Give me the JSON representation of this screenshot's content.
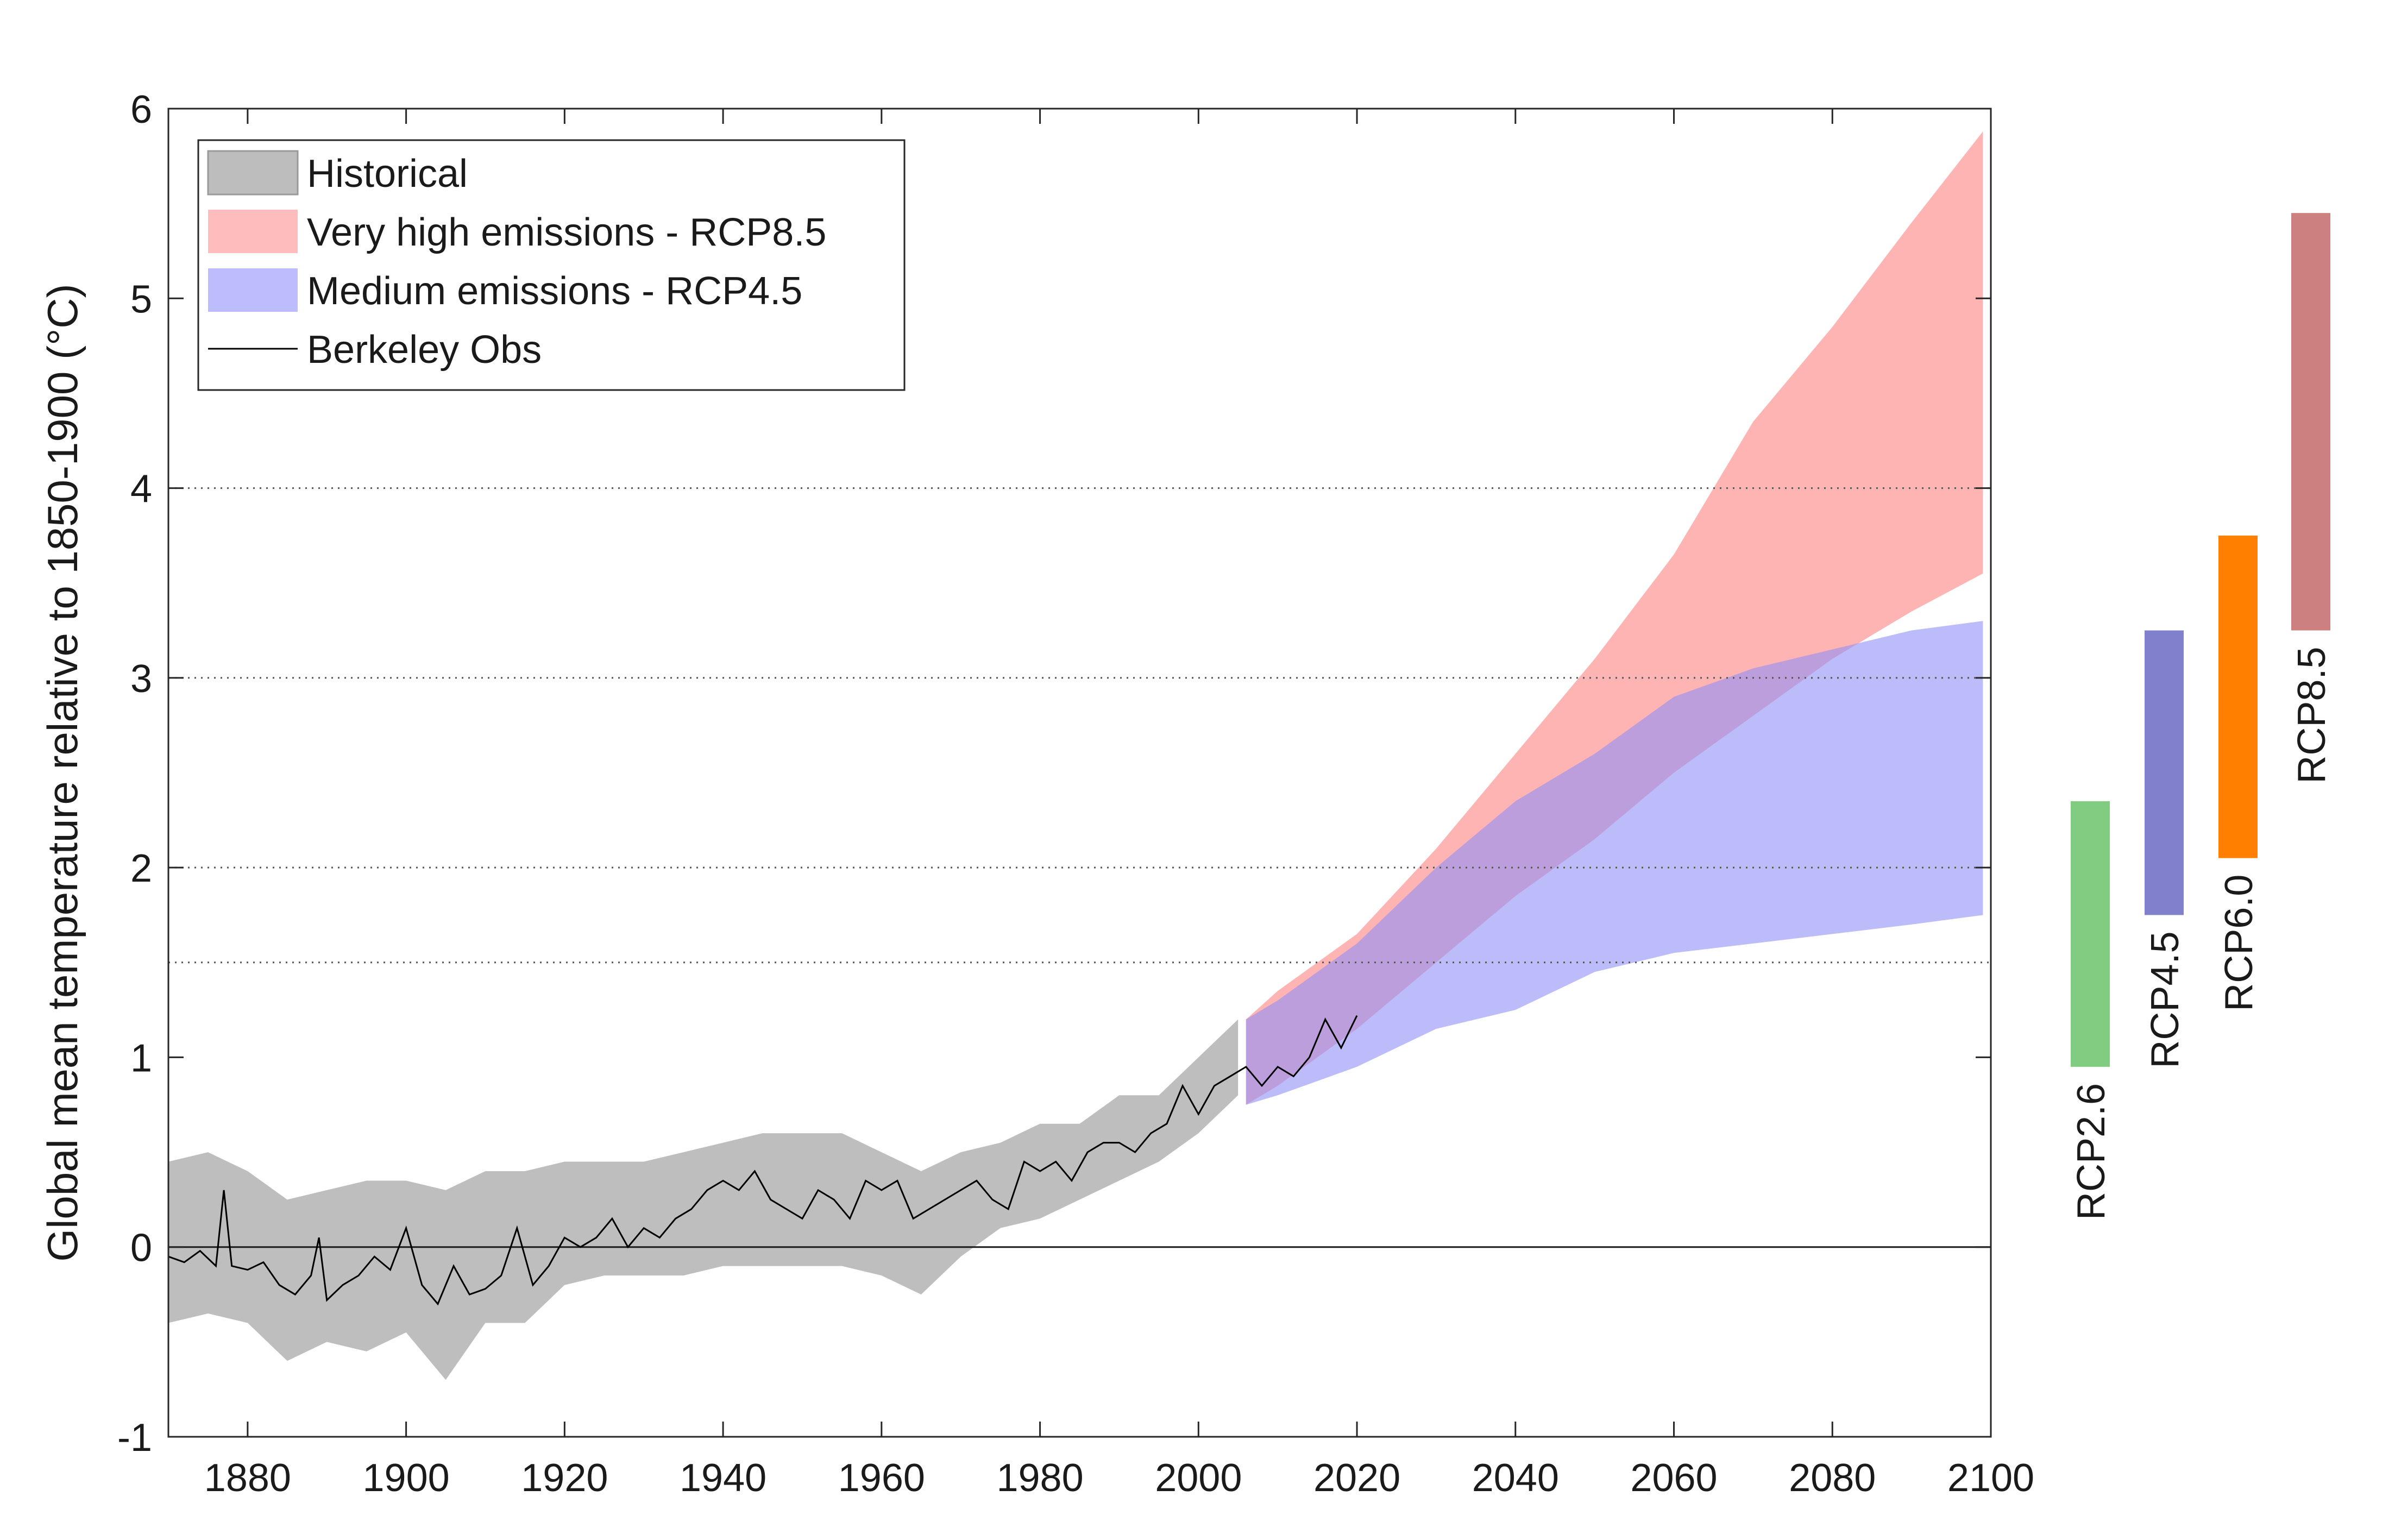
{
  "chart_data": {
    "type": "area",
    "title": "",
    "xlabel": "",
    "ylabel": "Global mean temperature relative to 1850-1900 (°C)",
    "xlim": [
      1870,
      2100
    ],
    "ylim": [
      -1,
      6
    ],
    "xticks": [
      1880,
      1900,
      1920,
      1940,
      1960,
      1980,
      2000,
      2020,
      2040,
      2060,
      2080,
      2100
    ],
    "yticks": [
      -1,
      0,
      1,
      2,
      3,
      4,
      5,
      6
    ],
    "reference_lines": [
      {
        "y": 0,
        "style": "solid"
      },
      {
        "y": 1.5,
        "style": "dotted"
      },
      {
        "y": 2,
        "style": "dotted"
      },
      {
        "y": 3,
        "style": "dotted"
      },
      {
        "y": 4,
        "style": "dotted"
      }
    ],
    "legend": {
      "placement": "top-left",
      "entries": [
        {
          "label": "Historical",
          "color": "#bdbdbd",
          "kind": "patch"
        },
        {
          "label": "Very high emissions - RCP8.5",
          "color": "#ffbcbc",
          "kind": "patch"
        },
        {
          "label": "Medium emissions - RCP4.5",
          "color": "#bdbcfc",
          "kind": "patch"
        },
        {
          "label": "Berkeley Obs",
          "color": "#000000",
          "kind": "line"
        }
      ]
    },
    "series": [
      {
        "name": "Historical",
        "kind": "band",
        "color": "#bebebe",
        "x": [
          1870,
          1875,
          1880,
          1885,
          1890,
          1895,
          1900,
          1905,
          1910,
          1915,
          1920,
          1925,
          1930,
          1935,
          1940,
          1945,
          1950,
          1955,
          1960,
          1965,
          1970,
          1975,
          1980,
          1985,
          1990,
          1995,
          2000,
          2005
        ],
        "upper": [
          0.45,
          0.5,
          0.4,
          0.25,
          0.3,
          0.35,
          0.35,
          0.3,
          0.4,
          0.4,
          0.45,
          0.45,
          0.45,
          0.5,
          0.55,
          0.6,
          0.6,
          0.6,
          0.5,
          0.4,
          0.5,
          0.55,
          0.65,
          0.65,
          0.8,
          0.8,
          1.0,
          1.2
        ],
        "lower": [
          -0.4,
          -0.35,
          -0.4,
          -0.6,
          -0.5,
          -0.55,
          -0.45,
          -0.7,
          -0.4,
          -0.4,
          -0.2,
          -0.15,
          -0.15,
          -0.15,
          -0.1,
          -0.1,
          -0.1,
          -0.1,
          -0.15,
          -0.25,
          -0.05,
          0.1,
          0.15,
          0.25,
          0.35,
          0.45,
          0.6,
          0.8
        ]
      },
      {
        "name": "Very high emissions - RCP8.5",
        "kind": "band",
        "color": "#ffb0b0",
        "x": [
          2006,
          2010,
          2020,
          2030,
          2040,
          2050,
          2060,
          2070,
          2080,
          2090,
          2099
        ],
        "upper": [
          1.2,
          1.35,
          1.65,
          2.1,
          2.6,
          3.1,
          3.65,
          4.35,
          4.85,
          5.4,
          5.88
        ],
        "lower": [
          0.75,
          0.85,
          1.15,
          1.5,
          1.85,
          2.15,
          2.5,
          2.8,
          3.1,
          3.35,
          3.55
        ]
      },
      {
        "name": "Medium emissions - RCP4.5",
        "kind": "band",
        "color": "#9090f8",
        "x": [
          2006,
          2010,
          2020,
          2030,
          2040,
          2050,
          2060,
          2070,
          2080,
          2090,
          2099
        ],
        "upper": [
          1.2,
          1.3,
          1.6,
          2.0,
          2.35,
          2.6,
          2.9,
          3.05,
          3.15,
          3.25,
          3.3
        ],
        "lower": [
          0.75,
          0.8,
          0.95,
          1.15,
          1.25,
          1.45,
          1.55,
          1.6,
          1.65,
          1.7,
          1.75
        ]
      },
      {
        "name": "Berkeley Obs",
        "kind": "line",
        "color": "#000000",
        "x": [
          1870,
          1872,
          1874,
          1876,
          1877,
          1878,
          1880,
          1882,
          1884,
          1886,
          1888,
          1889,
          1890,
          1892,
          1894,
          1896,
          1898,
          1900,
          1902,
          1904,
          1906,
          1908,
          1910,
          1912,
          1914,
          1916,
          1918,
          1920,
          1922,
          1924,
          1926,
          1928,
          1930,
          1932,
          1934,
          1936,
          1938,
          1940,
          1942,
          1944,
          1946,
          1948,
          1950,
          1952,
          1954,
          1956,
          1958,
          1960,
          1962,
          1964,
          1966,
          1968,
          1970,
          1972,
          1974,
          1976,
          1978,
          1980,
          1982,
          1984,
          1986,
          1988,
          1990,
          1992,
          1994,
          1996,
          1998,
          2000,
          2002,
          2004,
          2006,
          2008,
          2010,
          2012,
          2014,
          2016,
          2018,
          2020
        ],
        "values": [
          -0.05,
          -0.08,
          -0.02,
          -0.1,
          0.3,
          -0.1,
          -0.12,
          -0.08,
          -0.2,
          -0.25,
          -0.15,
          0.05,
          -0.28,
          -0.2,
          -0.15,
          -0.05,
          -0.12,
          0.1,
          -0.2,
          -0.3,
          -0.1,
          -0.25,
          -0.22,
          -0.15,
          0.1,
          -0.2,
          -0.1,
          0.05,
          0.0,
          0.05,
          0.15,
          0.0,
          0.1,
          0.05,
          0.15,
          0.2,
          0.3,
          0.35,
          0.3,
          0.4,
          0.25,
          0.2,
          0.15,
          0.3,
          0.25,
          0.15,
          0.35,
          0.3,
          0.35,
          0.15,
          0.2,
          0.25,
          0.3,
          0.35,
          0.25,
          0.2,
          0.45,
          0.4,
          0.45,
          0.35,
          0.5,
          0.55,
          0.55,
          0.5,
          0.6,
          0.65,
          0.85,
          0.7,
          0.85,
          0.9,
          0.95,
          0.85,
          0.95,
          0.9,
          1.0,
          1.2,
          1.05,
          1.22
        ]
      }
    ],
    "side_bars": [
      {
        "label": "RCP2.6",
        "color": "#80cc80",
        "range": [
          0.95,
          2.35
        ]
      },
      {
        "label": "RCP4.5",
        "color": "#8080cc",
        "range": [
          1.75,
          3.25
        ]
      },
      {
        "label": "RCP6.0",
        "color": "#ff8000",
        "range": [
          2.05,
          3.75
        ]
      },
      {
        "label": "RCP8.5",
        "color": "#cc8080",
        "range": [
          3.25,
          5.45
        ]
      }
    ]
  }
}
